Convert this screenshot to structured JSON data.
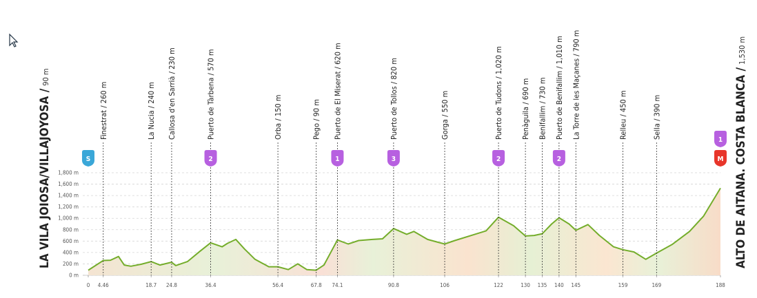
{
  "chart_data": {
    "type": "area",
    "start_label": "LA VILA JOIOSA/VILLAJOYOSA /",
    "start_altitude": "90 m",
    "finish_label": "ALTO DE AITANA. COSTA BLANCA /",
    "finish_altitude": "1,530 m",
    "x": [
      0,
      4.46,
      6.6,
      9,
      10.7,
      12.7,
      15.8,
      18.7,
      21.3,
      24.8,
      26,
      29.5,
      33.2,
      36.4,
      39.8,
      41.4,
      43.9,
      46.5,
      49.6,
      53.7,
      56.4,
      59.5,
      62.3,
      65,
      67.8,
      70.1,
      74.1,
      77.3,
      80.4,
      84.5,
      87.5,
      90.8,
      94.7,
      96.8,
      100.9,
      104,
      106,
      109,
      115,
      118.3,
      122,
      126.5,
      130,
      132.6,
      135,
      137.8,
      140,
      143,
      145,
      148.6,
      152,
      156.2,
      159,
      162.3,
      165.8,
      169,
      173.6,
      178.8,
      183,
      188
    ],
    "values": [
      90,
      260,
      265,
      330,
      180,
      160,
      195,
      240,
      180,
      230,
      170,
      240,
      420,
      570,
      500,
      560,
      630,
      460,
      280,
      150,
      150,
      100,
      200,
      100,
      90,
      180,
      620,
      550,
      610,
      630,
      640,
      820,
      720,
      770,
      630,
      580,
      550,
      610,
      720,
      780,
      1020,
      870,
      690,
      700,
      730,
      900,
      1010,
      900,
      790,
      890,
      700,
      500,
      450,
      410,
      280,
      390,
      540,
      770,
      1040,
      1530
    ],
    "color": "#74ad2b",
    "xlim": [
      0,
      188
    ],
    "ylim": [
      0,
      1800
    ],
    "xticks": [
      0,
      4.46,
      18.7,
      24.8,
      36.4,
      56.4,
      67.8,
      74.1,
      90.8,
      106,
      122,
      130,
      135,
      140,
      145,
      159,
      169,
      188
    ],
    "yticks": [
      {
        "value": 0,
        "label": "0 m"
      },
      {
        "value": 200,
        "label": "200 m"
      },
      {
        "value": 400,
        "label": "400 m"
      },
      {
        "value": 600,
        "label": "600 m"
      },
      {
        "value": 800,
        "label": "800 m"
      },
      {
        "value": 1000,
        "label": "1,000 m"
      },
      {
        "value": 1200,
        "label": "1,200 m"
      },
      {
        "value": 1400,
        "label": "1,400 m"
      },
      {
        "value": 1600,
        "label": "1,600 m"
      },
      {
        "value": 1800,
        "label": "1,800 m"
      }
    ],
    "grid": true,
    "waypoints": [
      {
        "km": 4.46,
        "label": "Finestrat / 260 m"
      },
      {
        "km": 18.7,
        "label": "La Nucia / 240 m"
      },
      {
        "km": 24.8,
        "label": "Callosa d'en Sarrià / 230 m"
      },
      {
        "km": 36.4,
        "label": "Puerto de Tàrbena / 570 m"
      },
      {
        "km": 56.4,
        "label": "Orba / 150 m"
      },
      {
        "km": 67.8,
        "label": "Pego / 90 m"
      },
      {
        "km": 74.1,
        "label": "Puerto de El Miserat / 620 m"
      },
      {
        "km": 90.8,
        "label": "Puerto de Tollos / 820 m"
      },
      {
        "km": 106,
        "label": "Gorga / 550 m"
      },
      {
        "km": 122,
        "label": "Puerto de Tudons / 1,020 m"
      },
      {
        "km": 130,
        "label": "Penàguila / 690 m"
      },
      {
        "km": 135,
        "label": "Benifallim / 730 m"
      },
      {
        "km": 140,
        "label": "Puerto de Benifallim / 1,010 m"
      },
      {
        "km": 145,
        "label": "La Torre de les Maçanes / 790 m"
      },
      {
        "km": 159,
        "label": "Relleu / 450 m"
      },
      {
        "km": 169,
        "label": "Sella / 390 m"
      }
    ],
    "badges": [
      {
        "km": 0,
        "label": "S",
        "color": "#3aa7d8"
      },
      {
        "km": 36.4,
        "label": "2",
        "color": "#b760e0"
      },
      {
        "km": 74.1,
        "label": "1",
        "color": "#b760e0"
      },
      {
        "km": 90.8,
        "label": "3",
        "color": "#b760e0"
      },
      {
        "km": 122,
        "label": "2",
        "color": "#b760e0"
      },
      {
        "km": 140,
        "label": "2",
        "color": "#b760e0"
      },
      {
        "km": 188,
        "label": "M",
        "color": "#e8352a"
      },
      {
        "km": 188,
        "label": "1",
        "color": "#b760e0"
      }
    ]
  }
}
